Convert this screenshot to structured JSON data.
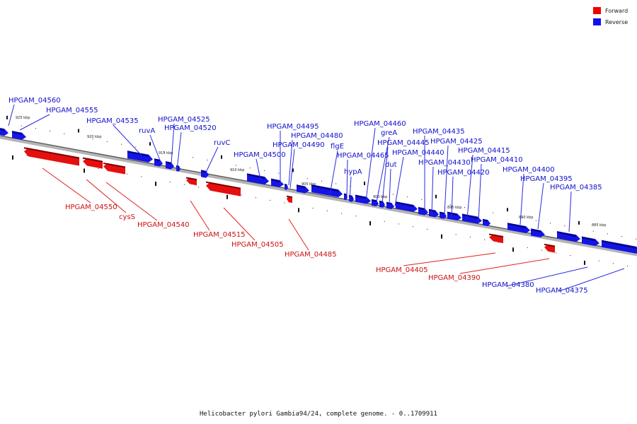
{
  "legend": [
    {
      "label": "Forward",
      "color": "#ee0000"
    },
    {
      "label": "Reverse",
      "color": "#1010ee"
    }
  ],
  "caption": "Helicobacter pylori Gambia94/24, complete genome. - 0..1709911",
  "ruler": {
    "ticks": [
      "925 kbp",
      "920 kbp",
      "915 kbp",
      "910 kbp",
      "905 kbp",
      "900 kbp",
      "895 kbp",
      "890 kbp",
      "885 kbp"
    ]
  },
  "genes": {
    "reverse": [
      "HPGAM_04560",
      "HPGAM_04555",
      "HPGAM_04535",
      "ruvA",
      "HPGAM_04525",
      "HPGAM_04520",
      "ruvC",
      "HPGAM_04500",
      "HPGAM_04495",
      "HPGAM_04480",
      "HPGAM_04490",
      "flgE",
      "HPGAM_04465",
      "hypA",
      "HPGAM_04460",
      "greA",
      "HPGAM_04445",
      "dut",
      "HPGAM_04440",
      "HPGAM_04435",
      "HPGAM_04430",
      "HPGAM_04425",
      "HPGAM_04420",
      "HPGAM_04415",
      "HPGAM_04410",
      "HPGAM_04400",
      "HPGAM_04395",
      "HPGAM_04385",
      "HPGAM_04380",
      "HPGAM_04375"
    ],
    "forward": [
      "HPGAM_04550",
      "cysS",
      "HPGAM_04540",
      "HPGAM_04515",
      "HPGAM_04505",
      "HPGAM_04485",
      "HPGAM_04405",
      "HPGAM_04390"
    ]
  }
}
